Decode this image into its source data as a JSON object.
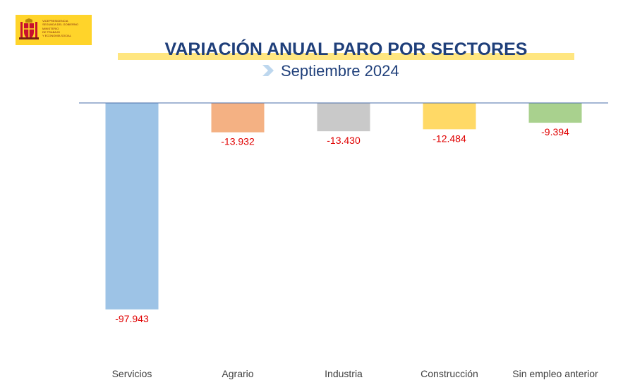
{
  "logo": {
    "line1": "VICEPRESIDENCIA\nSEGUNDA DEL GOBIERNO",
    "line2": "MINISTERIO\nDE TRABAJO\nY ECONOMÍA SOCIAL",
    "color": "#ffd42a"
  },
  "header": {
    "title": "VARIACIÓN ANUAL PARO POR SECTORES",
    "subtitle": "Septiembre 2024"
  },
  "chart_data": {
    "type": "bar",
    "title": "VARIACIÓN ANUAL PARO POR SECTORES",
    "subtitle": "Septiembre 2024",
    "categories": [
      "Servicios",
      "Agrario",
      "Industria",
      "Construcción",
      "Sin empleo anterior"
    ],
    "values": [
      -97943,
      -13932,
      -13430,
      -12484,
      -9394
    ],
    "value_labels": [
      "-97.943",
      "-13.932",
      "-13.430",
      "-12.484",
      "-9.394"
    ],
    "colors": [
      "#9dc3e6",
      "#f4b183",
      "#c9c9c9",
      "#ffd966",
      "#a9d18e"
    ],
    "label_color": "#e00000",
    "ylim": [
      -100000,
      0
    ],
    "grid": false,
    "legend": "none"
  }
}
